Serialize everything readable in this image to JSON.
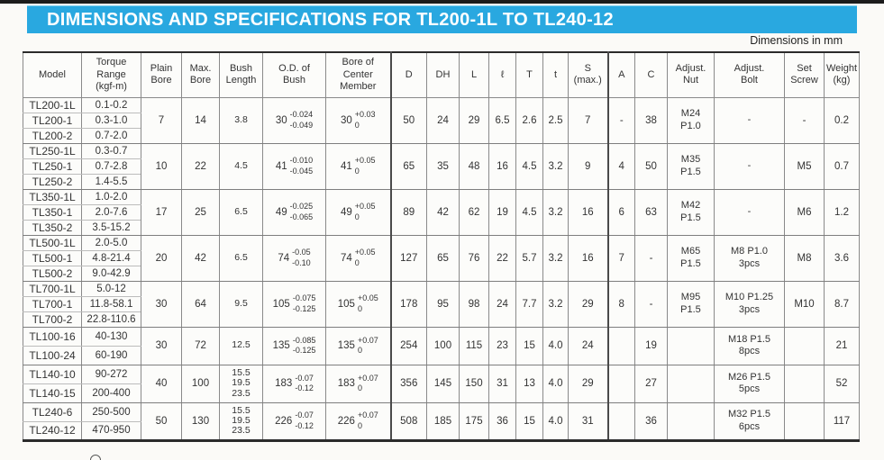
{
  "page": {
    "title": "DIMENSIONS AND SPECIFICATIONS FOR TL200-1L TO TL240-12",
    "units_note": "Dimensions in mm"
  },
  "table": {
    "headers": [
      "Model",
      "Torque\nRange\n(kgf-m)",
      "Plain\nBore",
      "Max.\nBore",
      "Bush\nLength",
      "O.D. of\nBush",
      "Bore of\nCenter\nMember",
      "D",
      "DH",
      "L",
      "ℓ",
      "T",
      "t",
      "S\n(max.)",
      "A",
      "C",
      "Adjust.\nNut",
      "Adjust.\nBolt",
      "Set\nScrew",
      "Weight\n(kg)"
    ],
    "groups": [
      {
        "models": [
          {
            "name": "TL200-1L",
            "torque": "0.1-0.2"
          },
          {
            "name": "TL200-1",
            "torque": "0.3-1.0"
          },
          {
            "name": "TL200-2",
            "torque": "0.7-2.0"
          }
        ],
        "plain_bore": "7",
        "max_bore": "14",
        "bush_length": "3.8",
        "od_bush": {
          "base": "30",
          "upper": "-0.024",
          "lower": "-0.049"
        },
        "bore_center": {
          "base": "30",
          "upper": "+0.03",
          "lower": "0"
        },
        "d": "50",
        "dh": "24",
        "l": "29",
        "ell": "6.5",
        "t_cap": "2.6",
        "t_low": "2.5",
        "s_max": "7",
        "a": "-",
        "c": "38",
        "adjust_nut": "M24\nP1.0",
        "adjust_bolt": "-",
        "set_screw": "-",
        "weight": "0.2"
      },
      {
        "models": [
          {
            "name": "TL250-1L",
            "torque": "0.3-0.7"
          },
          {
            "name": "TL250-1",
            "torque": "0.7-2.8"
          },
          {
            "name": "TL250-2",
            "torque": "1.4-5.5"
          }
        ],
        "plain_bore": "10",
        "max_bore": "22",
        "bush_length": "4.5",
        "od_bush": {
          "base": "41",
          "upper": "-0.010",
          "lower": "-0.045"
        },
        "bore_center": {
          "base": "41",
          "upper": "+0.05",
          "lower": "0"
        },
        "d": "65",
        "dh": "35",
        "l": "48",
        "ell": "16",
        "t_cap": "4.5",
        "t_low": "3.2",
        "s_max": "9",
        "a": "4",
        "c": "50",
        "adjust_nut": "M35\nP1.5",
        "adjust_bolt": "-",
        "set_screw": "M5",
        "weight": "0.7"
      },
      {
        "models": [
          {
            "name": "TL350-1L",
            "torque": "1.0-2.0"
          },
          {
            "name": "TL350-1",
            "torque": "2.0-7.6"
          },
          {
            "name": "TL350-2",
            "torque": "3.5-15.2"
          }
        ],
        "plain_bore": "17",
        "max_bore": "25",
        "bush_length": "6.5",
        "od_bush": {
          "base": "49",
          "upper": "-0.025",
          "lower": "-0.065"
        },
        "bore_center": {
          "base": "49",
          "upper": "+0.05",
          "lower": "0"
        },
        "d": "89",
        "dh": "42",
        "l": "62",
        "ell": "19",
        "t_cap": "4.5",
        "t_low": "3.2",
        "s_max": "16",
        "a": "6",
        "c": "63",
        "adjust_nut": "M42\nP1.5",
        "adjust_bolt": "-",
        "set_screw": "M6",
        "weight": "1.2"
      },
      {
        "models": [
          {
            "name": "TL500-1L",
            "torque": "2.0-5.0"
          },
          {
            "name": "TL500-1",
            "torque": "4.8-21.4"
          },
          {
            "name": "TL500-2",
            "torque": "9.0-42.9"
          }
        ],
        "plain_bore": "20",
        "max_bore": "42",
        "bush_length": "6.5",
        "od_bush": {
          "base": "74",
          "upper": "-0.05",
          "lower": "-0.10"
        },
        "bore_center": {
          "base": "74",
          "upper": "+0.05",
          "lower": "0"
        },
        "d": "127",
        "dh": "65",
        "l": "76",
        "ell": "22",
        "t_cap": "5.7",
        "t_low": "3.2",
        "s_max": "16",
        "a": "7",
        "c": "-",
        "adjust_nut": "M65\nP1.5",
        "adjust_bolt": "M8 P1.0\n3pcs",
        "set_screw": "M8",
        "weight": "3.6"
      },
      {
        "models": [
          {
            "name": "TL700-1L",
            "torque": "5.0-12"
          },
          {
            "name": "TL700-1",
            "torque": "11.8-58.1"
          },
          {
            "name": "TL700-2",
            "torque": "22.8-110.6"
          }
        ],
        "plain_bore": "30",
        "max_bore": "64",
        "bush_length": "9.5",
        "od_bush": {
          "base": "105",
          "upper": "-0.075",
          "lower": "-0.125"
        },
        "bore_center": {
          "base": "105",
          "upper": "+0.05",
          "lower": "0"
        },
        "d": "178",
        "dh": "95",
        "l": "98",
        "ell": "24",
        "t_cap": "7.7",
        "t_low": "3.2",
        "s_max": "29",
        "a": "8",
        "c": "-",
        "adjust_nut": "M95\nP1.5",
        "adjust_bolt": "M10 P1.25\n3pcs",
        "set_screw": "M10",
        "weight": "8.7"
      },
      {
        "models": [
          {
            "name": "TL100-16",
            "torque": "40-130"
          },
          {
            "name": "TL100-24",
            "torque": "60-190"
          }
        ],
        "plain_bore": "30",
        "max_bore": "72",
        "bush_length": "12.5",
        "od_bush": {
          "base": "135",
          "upper": "-0.085",
          "lower": "-0.125"
        },
        "bore_center": {
          "base": "135",
          "upper": "+0.07",
          "lower": "0"
        },
        "d": "254",
        "dh": "100",
        "l": "115",
        "ell": "23",
        "t_cap": "15",
        "t_low": "4.0",
        "s_max": "24",
        "a": "",
        "c": "19",
        "adjust_nut": "",
        "adjust_bolt": "M18 P1.5\n8pcs",
        "set_screw": "",
        "weight": "21"
      },
      {
        "models": [
          {
            "name": "TL140-10",
            "torque": "90-272"
          },
          {
            "name": "TL140-15",
            "torque": "200-400"
          }
        ],
        "plain_bore": "40",
        "max_bore": "100",
        "bush_length": "15.5\n19.5\n23.5",
        "od_bush": {
          "base": "183",
          "upper": "-0.07",
          "lower": "-0.12"
        },
        "bore_center": {
          "base": "183",
          "upper": "+0.07",
          "lower": "0"
        },
        "d": "356",
        "dh": "145",
        "l": "150",
        "ell": "31",
        "t_cap": "13",
        "t_low": "4.0",
        "s_max": "29",
        "a": "",
        "c": "27",
        "adjust_nut": "",
        "adjust_bolt": "M26 P1.5\n5pcs",
        "set_screw": "",
        "weight": "52"
      },
      {
        "models": [
          {
            "name": "TL240-6",
            "torque": "250-500"
          },
          {
            "name": "TL240-12",
            "torque": "470-950"
          }
        ],
        "plain_bore": "50",
        "max_bore": "130",
        "bush_length": "15.5\n19.5\n23.5",
        "od_bush": {
          "base": "226",
          "upper": "-0.07",
          "lower": "-0.12"
        },
        "bore_center": {
          "base": "226",
          "upper": "+0.07",
          "lower": "0"
        },
        "d": "508",
        "dh": "185",
        "l": "175",
        "ell": "36",
        "t_cap": "15",
        "t_low": "4.0",
        "s_max": "31",
        "a": "",
        "c": "36",
        "adjust_nut": "",
        "adjust_bolt": "M32 P1.5\n6pcs",
        "set_screw": "",
        "weight": "117"
      }
    ]
  }
}
